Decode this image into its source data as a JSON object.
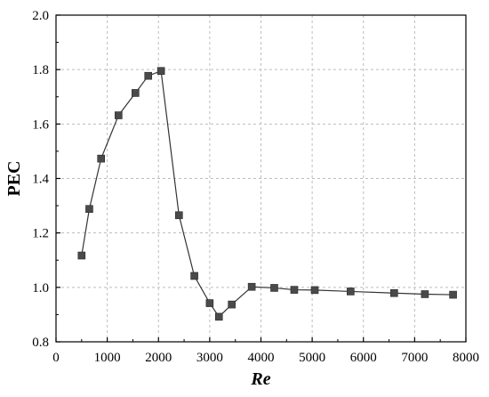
{
  "chart_data": {
    "type": "line",
    "title": "",
    "xlabel": "Re",
    "ylabel": "PEC",
    "xlim": [
      0,
      8000
    ],
    "ylim": [
      0.8,
      2.0
    ],
    "xticks": [
      0,
      1000,
      2000,
      3000,
      4000,
      5000,
      6000,
      7000,
      8000
    ],
    "yticks": [
      0.8,
      1.0,
      1.2,
      1.4,
      1.6,
      1.8,
      2.0
    ],
    "xtick_labels": [
      "0",
      "1000",
      "2000",
      "3000",
      "4000",
      "5000",
      "6000",
      "7000",
      "8000"
    ],
    "ytick_labels": [
      "0.8",
      "1.0",
      "1.2",
      "1.4",
      "1.6",
      "1.8",
      "2.0"
    ],
    "grid": true,
    "legend": "none",
    "colors": {
      "line": "#333333",
      "marker": "#4a4a4a",
      "grid": "#bdbdbd",
      "axis": "#000000"
    },
    "series": [
      {
        "name": "",
        "marker": "square",
        "x": [
          500,
          650,
          880,
          1220,
          1550,
          1800,
          2050,
          2400,
          2700,
          3000,
          3180,
          3430,
          3820,
          4260,
          4650,
          5050,
          5750,
          6600,
          7200,
          7750
        ],
        "y": [
          1.117,
          1.288,
          1.473,
          1.632,
          1.714,
          1.777,
          1.795,
          1.265,
          1.042,
          0.942,
          0.892,
          0.937,
          1.002,
          0.998,
          0.991,
          0.99,
          0.985,
          0.979,
          0.975,
          0.973
        ]
      }
    ]
  }
}
